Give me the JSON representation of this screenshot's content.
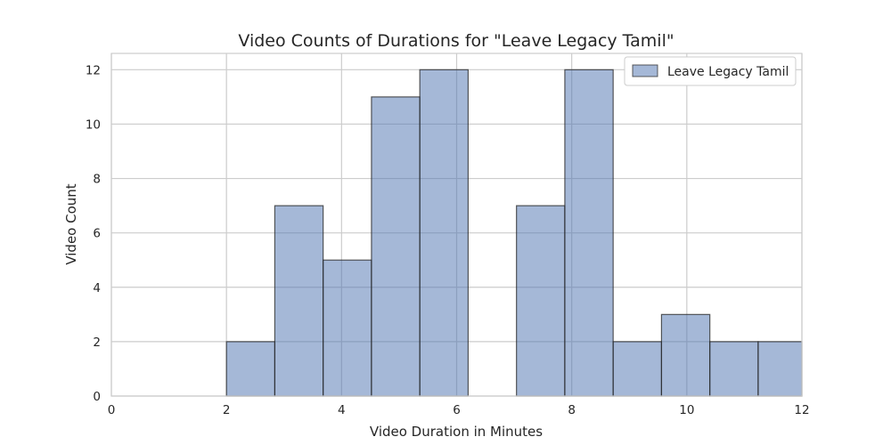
{
  "chart_data": {
    "type": "bar",
    "title": "Video Counts of Durations for \"Leave Legacy Tamil\"",
    "xlabel": "Video Duration in Minutes",
    "ylabel": "Video Count",
    "xlim": [
      0,
      12
    ],
    "ylim": [
      0,
      12.6
    ],
    "xticks": [
      "0",
      "2",
      "4",
      "6",
      "8",
      "10",
      "12"
    ],
    "yticks": [
      "0",
      "2",
      "4",
      "6",
      "8",
      "10",
      "12"
    ],
    "grid": true,
    "legend_position": "top-right",
    "series": [
      {
        "name": "Leave Legacy Tamil",
        "color": "#4c72b0",
        "bins": [
          {
            "x0": 2.0,
            "x1": 2.84,
            "count": 2
          },
          {
            "x0": 2.84,
            "x1": 3.68,
            "count": 7
          },
          {
            "x0": 3.68,
            "x1": 4.52,
            "count": 5
          },
          {
            "x0": 4.52,
            "x1": 5.36,
            "count": 11
          },
          {
            "x0": 5.36,
            "x1": 6.2,
            "count": 12
          },
          {
            "x0": 6.2,
            "x1": 7.04,
            "count": 0
          },
          {
            "x0": 7.04,
            "x1": 7.88,
            "count": 7
          },
          {
            "x0": 7.88,
            "x1": 8.72,
            "count": 12
          },
          {
            "x0": 8.72,
            "x1": 9.56,
            "count": 2
          },
          {
            "x0": 9.56,
            "x1": 10.4,
            "count": 3
          },
          {
            "x0": 10.4,
            "x1": 11.24,
            "count": 2
          },
          {
            "x0": 11.24,
            "x1": 12.08,
            "count": 2
          }
        ]
      }
    ]
  }
}
